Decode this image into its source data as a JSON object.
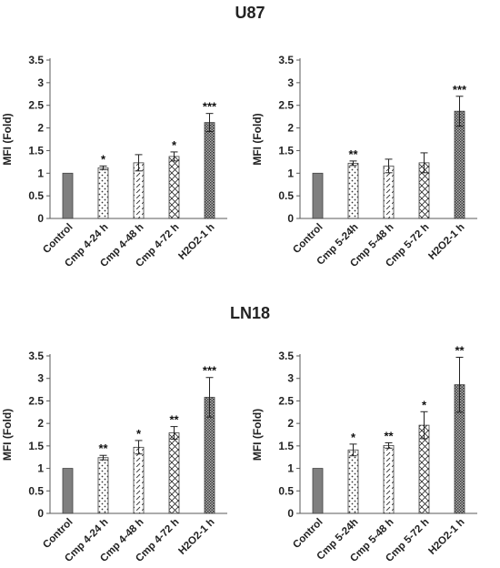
{
  "sections": [
    {
      "title": "U87"
    },
    {
      "title": "LN18"
    }
  ],
  "colors": {
    "control_fill": "#7f7f7f",
    "axis": "#595959",
    "text": "#222222"
  },
  "chart_data": [
    {
      "type": "bar",
      "ylabel": "MFI (Fold)",
      "ylim": [
        0,
        3.5
      ],
      "yticks": [
        "0",
        "0.5",
        "1",
        "1.5",
        "2",
        "2.5",
        "3",
        "3.5"
      ],
      "categories": [
        "Control",
        "Cmp 4-24 h",
        "Cmp 4-48 h",
        "Cmp 4-72 h",
        "H2O2-1 h"
      ],
      "values": [
        1.0,
        1.12,
        1.23,
        1.37,
        2.12
      ],
      "errors": [
        0,
        0.04,
        0.18,
        0.1,
        0.2
      ],
      "significance": [
        "",
        "*",
        "",
        "*",
        "***"
      ],
      "patterns": [
        "solid",
        "dots",
        "diag-dash",
        "crosshatch",
        "dense-grid"
      ]
    },
    {
      "type": "bar",
      "ylabel": "MFI (Fold)",
      "ylim": [
        0,
        3.5
      ],
      "yticks": [
        "0",
        "0.5",
        "1",
        "1.5",
        "2",
        "2.5",
        "3",
        "3.5"
      ],
      "categories": [
        "Control",
        "Cmp 5-24h",
        "Cmp 5-48 h",
        "Cmp 5-72 h",
        "H2O2-1 h"
      ],
      "values": [
        1.0,
        1.22,
        1.16,
        1.23,
        2.37
      ],
      "errors": [
        0,
        0.05,
        0.15,
        0.22,
        0.33
      ],
      "significance": [
        "",
        "**",
        "",
        "",
        "***"
      ],
      "patterns": [
        "solid",
        "dots",
        "diag-dash",
        "crosshatch",
        "dense-grid"
      ]
    },
    {
      "type": "bar",
      "ylabel": "MFI (Fold)",
      "ylim": [
        0,
        3.5
      ],
      "yticks": [
        "0",
        "0.5",
        "1",
        "1.5",
        "2",
        "2.5",
        "3",
        "3.5"
      ],
      "categories": [
        "Control",
        "Cmp 4-24 h",
        "Cmp 4-48 h",
        "Cmp 4-72 h",
        "H2O2-1 h"
      ],
      "values": [
        1.0,
        1.24,
        1.47,
        1.79,
        2.58
      ],
      "errors": [
        0,
        0.05,
        0.15,
        0.14,
        0.44
      ],
      "significance": [
        "",
        "**",
        "*",
        "**",
        "***"
      ],
      "patterns": [
        "solid",
        "dots",
        "diag-dash",
        "crosshatch",
        "dense-grid"
      ]
    },
    {
      "type": "bar",
      "ylabel": "MFI (Fold)",
      "ylim": [
        0,
        3.5
      ],
      "yticks": [
        "0",
        "0.5",
        "1",
        "1.5",
        "2",
        "2.5",
        "3",
        "3.5"
      ],
      "categories": [
        "Control",
        "Cmp 5-24h",
        "Cmp 5-48 h",
        "Cmp 5-72 h",
        "H2O2-1 h"
      ],
      "values": [
        1.0,
        1.41,
        1.51,
        1.96,
        2.86
      ],
      "errors": [
        0,
        0.13,
        0.06,
        0.3,
        0.61
      ],
      "significance": [
        "",
        "*",
        "**",
        "*",
        "**"
      ],
      "patterns": [
        "solid",
        "dots",
        "diag-dash",
        "crosshatch",
        "dense-grid"
      ]
    }
  ]
}
